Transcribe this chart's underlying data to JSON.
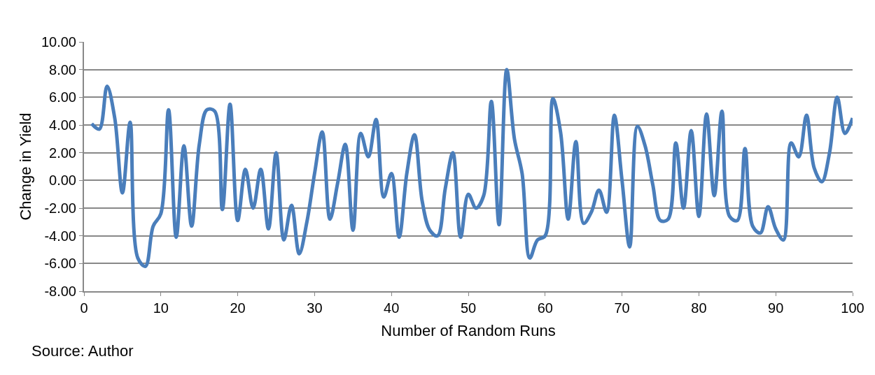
{
  "chart_data": {
    "type": "line",
    "xlabel": "Number of Random Runs",
    "ylabel": "Change in Yield",
    "annotations": [
      "Source: Author"
    ],
    "x": [
      1,
      2,
      3,
      4,
      5,
      6,
      7,
      8,
      9,
      10,
      11,
      12,
      13,
      14,
      15,
      16,
      17,
      18,
      19,
      20,
      21,
      22,
      23,
      24,
      25,
      26,
      27,
      28,
      29,
      30,
      31,
      32,
      33,
      34,
      35,
      36,
      37,
      38,
      39,
      40,
      41,
      42,
      43,
      44,
      45,
      46,
      47,
      48,
      49,
      50,
      51,
      52,
      53,
      54,
      55,
      56,
      57,
      58,
      59,
      60,
      61,
      62,
      63,
      64,
      65,
      66,
      67,
      68,
      69,
      70,
      71,
      72,
      73,
      74,
      75,
      76,
      77,
      78,
      79,
      80,
      81,
      82,
      83,
      84,
      85,
      86,
      87,
      88,
      89,
      90,
      91,
      92,
      93,
      94,
      95,
      96,
      97,
      98,
      99,
      100
    ],
    "series": [
      {
        "color": "#4a7ebb",
        "values": [
          4.1,
          3.7,
          6.8,
          4.5,
          -0.9,
          4.2,
          -5.6,
          -6.2,
          -3.3,
          -2.4,
          5.1,
          -4.1,
          2.5,
          -3.3,
          2.6,
          5.1,
          5.0,
          -2.1,
          5.5,
          -2.9,
          0.8,
          -2.0,
          0.8,
          -3.5,
          2.0,
          -4.3,
          -1.8,
          -5.3,
          -3.0,
          0.5,
          3.5,
          -2.8,
          -0.2,
          2.6,
          -3.6,
          3.4,
          1.7,
          4.4,
          -1.2,
          0.5,
          -4.1,
          0.5,
          3.3,
          -1.5,
          -3.6,
          -4.0,
          -0.6,
          2.0,
          -4.1,
          -1.0,
          -2.0,
          -1.1,
          5.7,
          -3.2,
          8.0,
          3.0,
          0.5,
          -5.6,
          -4.3,
          -4.0,
          5.9,
          3.5,
          -2.8,
          2.8,
          -3.1,
          -2.3,
          -0.7,
          -2.3,
          4.7,
          0.0,
          -4.8,
          3.9,
          2.5,
          -0.3,
          -2.9,
          -2.8,
          2.7,
          -2.0,
          3.6,
          -2.6,
          4.8,
          -1.1,
          5.0,
          -2.6,
          -2.9,
          2.3,
          -3.3,
          -3.8,
          -1.9,
          -3.5,
          -4.3,
          2.7,
          1.7,
          4.7,
          0.9,
          -0.1,
          2.0,
          6.0,
          3.4,
          4.5
        ]
      }
    ],
    "xlim": [
      0,
      100
    ],
    "xticks": [
      0,
      10,
      20,
      30,
      40,
      50,
      60,
      70,
      80,
      90,
      100
    ],
    "ylim": [
      -8,
      10
    ],
    "yticks": [
      {
        "value": -8,
        "label": "-8.00"
      },
      {
        "value": -6,
        "label": "-6.00"
      },
      {
        "value": -4,
        "label": "-4.00"
      },
      {
        "value": -2,
        "label": "-2.00"
      },
      {
        "value": 0,
        "label": "0.00"
      },
      {
        "value": 2,
        "label": "2.00"
      },
      {
        "value": 4,
        "label": "4.00"
      },
      {
        "value": 6,
        "label": "6.00"
      },
      {
        "value": 8,
        "label": "8.00"
      },
      {
        "value": 10,
        "label": "10.00"
      }
    ],
    "grid": "y",
    "marker": "none",
    "line_style": "solid"
  }
}
